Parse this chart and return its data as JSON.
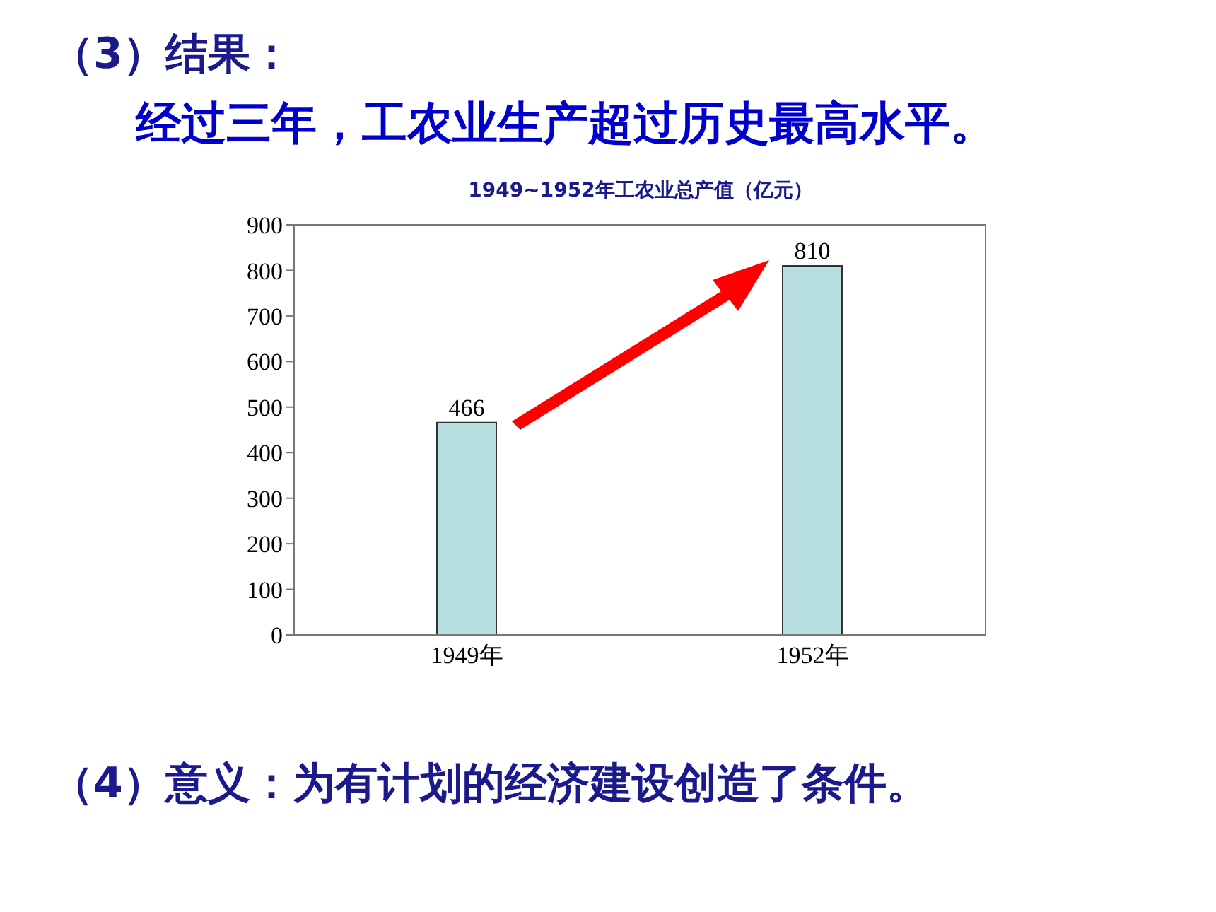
{
  "chart_data": {
    "type": "bar",
    "title": "1949~1952年工农业总产值（亿元）",
    "annotations": [
      "（3）结果：",
      "经过三年，工农业生产超过历史最高水平。",
      "（4）意义：为有计划的经济建设创造了条件。"
    ],
    "categories": [
      "1949年",
      "1952年"
    ],
    "values": [
      466,
      810
    ],
    "color": "#b7dfe0",
    "ylim": [
      0,
      900
    ],
    "yticks": [
      0,
      100,
      200,
      300,
      400,
      500,
      600,
      700,
      800,
      900
    ],
    "data_labels": true
  }
}
